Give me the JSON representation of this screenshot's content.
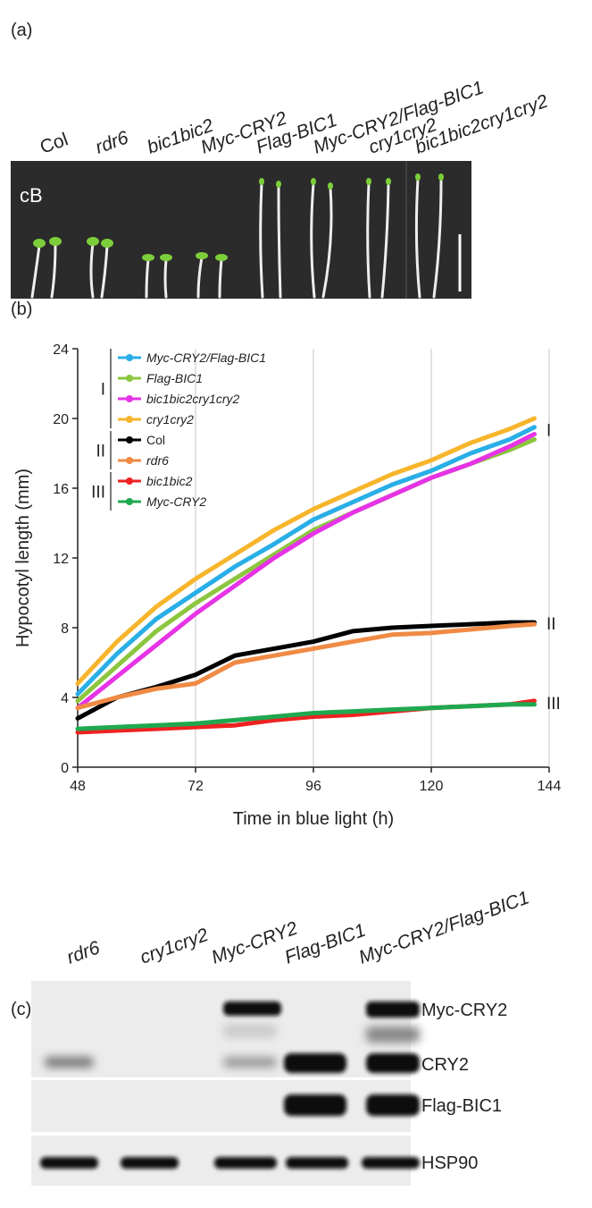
{
  "panel_a": {
    "label": "(a)",
    "condition": "cB",
    "genotypes": [
      "Col",
      "rdr6",
      "bic1bic2",
      "Myc-CRY2",
      "Flag-BIC1",
      "Myc-CRY2/Flag-BIC1",
      "cry1cry2",
      "bic1bic2cry1cry2"
    ]
  },
  "chart_data": {
    "type": "line",
    "panel_label": "(b)",
    "x_label": "Time in blue light (h)",
    "y_label": "Hypocotyl length (mm)",
    "xlim": [
      48,
      144
    ],
    "xticks": [
      48,
      72,
      96,
      120,
      144
    ],
    "ylim": [
      0,
      24
    ],
    "yticks": [
      0,
      4,
      8,
      12,
      16,
      20,
      24
    ],
    "grid": true,
    "x": [
      48,
      56,
      64,
      72,
      80,
      88,
      96,
      104,
      112,
      120,
      128,
      136,
      141
    ],
    "series": [
      {
        "name": "Myc-CRY2/Flag-BIC1",
        "group": "I",
        "italic": true,
        "color": "#29aee6",
        "values": [
          4.2,
          6.5,
          8.5,
          10,
          11.5,
          12.8,
          14.2,
          15.2,
          16.2,
          17,
          18,
          18.8,
          19.5
        ]
      },
      {
        "name": "Flag-BIC1",
        "group": "I",
        "italic": true,
        "color": "#8cc63f",
        "values": [
          3.8,
          5.8,
          7.8,
          9.4,
          10.8,
          12.2,
          13.6,
          14.6,
          15.6,
          16.6,
          17.4,
          18.2,
          18.8
        ]
      },
      {
        "name": "bic1bic2cry1cry2",
        "group": "I",
        "italic": true,
        "color": "#e633e6",
        "values": [
          3.4,
          5.2,
          7,
          8.8,
          10.4,
          12,
          13.4,
          14.6,
          15.6,
          16.6,
          17.4,
          18.4,
          19.1
        ]
      },
      {
        "name": "cry1cry2",
        "group": "I",
        "italic": true,
        "color": "#f7b52c",
        "values": [
          4.8,
          7.2,
          9.2,
          10.8,
          12.2,
          13.6,
          14.8,
          15.8,
          16.8,
          17.6,
          18.6,
          19.4,
          20
        ]
      },
      {
        "name": "Col",
        "group": "II",
        "italic": false,
        "color": "#000000",
        "values": [
          2.8,
          4,
          4.6,
          5.3,
          6.4,
          6.8,
          7.2,
          7.8,
          8,
          8.1,
          8.2,
          8.3,
          8.3
        ]
      },
      {
        "name": "rdr6",
        "group": "II",
        "italic": true,
        "color": "#f08a44",
        "values": [
          3.4,
          4,
          4.5,
          4.8,
          6,
          6.4,
          6.8,
          7.2,
          7.6,
          7.7,
          7.9,
          8.1,
          8.2
        ]
      },
      {
        "name": "bic1bic2",
        "group": "III",
        "italic": true,
        "color": "#ee2222",
        "values": [
          2,
          2.1,
          2.2,
          2.3,
          2.4,
          2.7,
          2.9,
          3,
          3.2,
          3.4,
          3.5,
          3.6,
          3.8
        ]
      },
      {
        "name": "Myc-CRY2",
        "group": "III",
        "italic": true,
        "color": "#1fa84f",
        "values": [
          2.2,
          2.3,
          2.4,
          2.5,
          2.7,
          2.9,
          3.1,
          3.2,
          3.3,
          3.4,
          3.5,
          3.6,
          3.6
        ]
      }
    ]
  },
  "panel_c": {
    "label": "(c)",
    "lanes": [
      "rdr6",
      "cry1cry2",
      "Myc-CRY2",
      "Flag-BIC1",
      "Myc-CRY2/Flag-BIC1"
    ],
    "bands": [
      "Myc-CRY2",
      "CRY2",
      "Flag-BIC1",
      "HSP90"
    ]
  }
}
